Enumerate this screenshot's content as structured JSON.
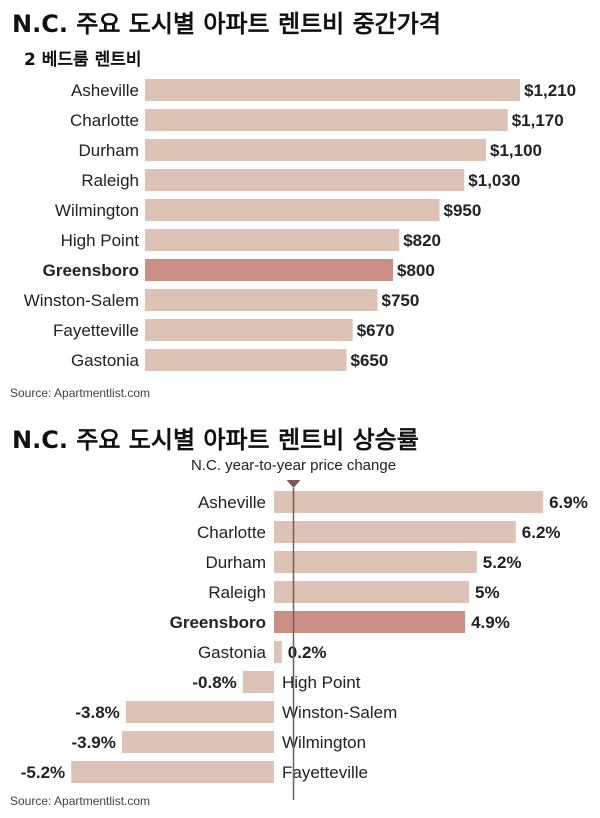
{
  "rent": {
    "title": "N.C. 주요 도시별 아파트 렌트비 중간가격",
    "subtitle": "2 베드룸 렌트비",
    "source": "Source: Apartmentlist.com"
  },
  "change": {
    "title": "N.C. 주요 도시별 아파트 렌트비 상승률",
    "source": "Source: Apartmentlist.com"
  },
  "colors": {
    "bar": "#dcc3b5",
    "highlight": "#c98f87",
    "marker": "#7d5a51",
    "text": "#222222"
  },
  "chart_data": [
    {
      "type": "bar",
      "orientation": "horizontal",
      "title": "N.C. 주요 도시별 아파트 렌트비 중간가격",
      "subtitle": "2 베드룸 렌트비",
      "categories": [
        "Asheville",
        "Charlotte",
        "Durham",
        "Raleigh",
        "Wilmington",
        "High Point",
        "Greensboro",
        "Winston-Salem",
        "Fayetteville",
        "Gastonia"
      ],
      "values": [
        1210,
        1170,
        1100,
        1030,
        950,
        820,
        800,
        750,
        670,
        650
      ],
      "value_labels": [
        "$1,210",
        "$1,170",
        "$1,100",
        "$1,030",
        "$950",
        "$820",
        "$800",
        "$750",
        "$670",
        "$650"
      ],
      "highlight": "Greensboro",
      "source": "Source: Apartmentlist.com"
    },
    {
      "type": "bar",
      "orientation": "horizontal",
      "title": "N.C. 주요 도시별 아파트 렌트비 상승률",
      "reference_label": "N.C. year-to-year price change",
      "categories": [
        "Asheville",
        "Charlotte",
        "Durham",
        "Raleigh",
        "Greensboro",
        "Gastonia",
        "High Point",
        "Winston-Salem",
        "Wilmington",
        "Fayetteville"
      ],
      "values": [
        6.9,
        6.2,
        5.2,
        5.0,
        4.9,
        0.2,
        -0.8,
        -3.8,
        -3.9,
        -5.2
      ],
      "value_labels": [
        "6.9%",
        "6.2%",
        "5.2%",
        "5%",
        "4.9%",
        "0.2%",
        "-0.8%",
        "-3.8%",
        "-3.9%",
        "-5.2%"
      ],
      "reference_value": 0.5,
      "highlight": "Greensboro",
      "source": "Source: Apartmentlist.com"
    }
  ]
}
